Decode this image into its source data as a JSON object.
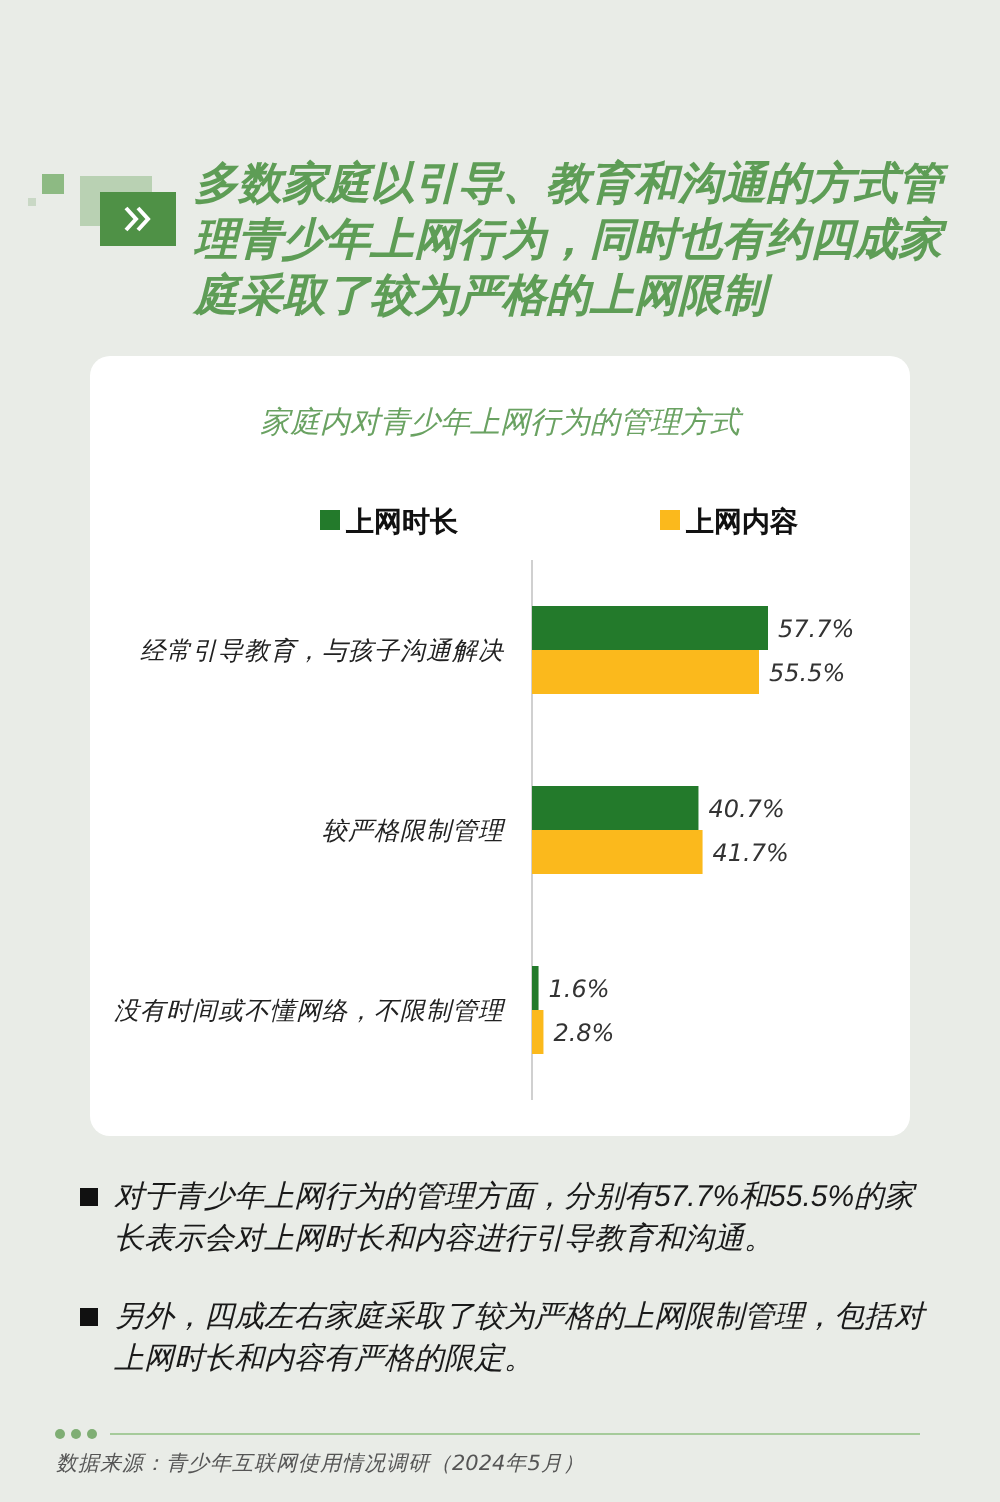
{
  "chart_data": {
    "type": "bar",
    "orientation": "horizontal",
    "title": "多数家庭以引导、教育和沟通的方式管理青少年上网行为，同时也有约四成家庭采取了较为严格的上网限制",
    "subtitle": "家庭内对青少年上网行为的管理方式",
    "categories": [
      "经常引导教育，与孩子沟通解决",
      "较严格限制管理",
      "没有时间或不懂网络，不限制管理"
    ],
    "series": [
      {
        "name": "上网时长",
        "color": "#237a2b",
        "values": [
          57.7,
          40.7,
          1.6
        ],
        "value_labels": [
          "57.7%",
          "40.7%",
          "1.6%"
        ]
      },
      {
        "name": "上网内容",
        "color": "#fbb91c",
        "values": [
          55.5,
          41.7,
          2.8
        ],
        "value_labels": [
          "55.5%",
          "41.7%",
          "2.8%"
        ]
      }
    ],
    "legend": "top",
    "annotations": [
      "对于青少年上网行为的管理方面，分别有57.7%和55.5%的家长表示会对上网时长和内容进行引导教育和沟通。",
      "另外，四成左右家庭采取了较为严格的上网限制管理，包括对上网时长和内容有严格的限定。",
      "数据来源：青少年互联网使用情况调研（2024年5月）"
    ]
  }
}
